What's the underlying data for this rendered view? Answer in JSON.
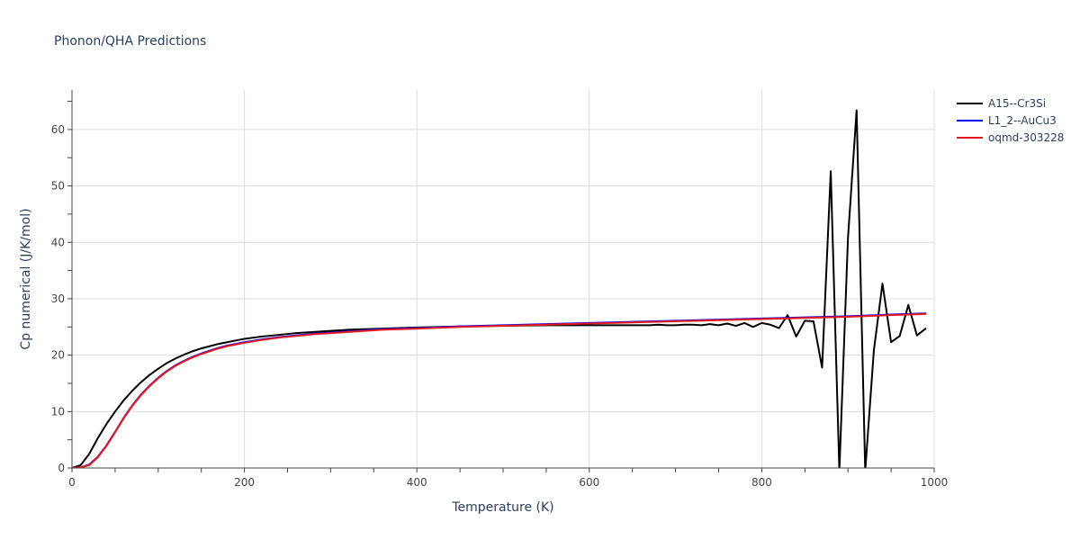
{
  "chart_data": {
    "type": "line",
    "title": "Phonon/QHA Predictions",
    "xlabel": "Temperature (K)",
    "ylabel": "Cp numerical (J/K/mol)",
    "xlim": [
      0,
      1000
    ],
    "ylim": [
      0,
      67
    ],
    "x_ticks": [
      0,
      200,
      400,
      600,
      800,
      1000
    ],
    "y_ticks": [
      0,
      10,
      20,
      30,
      40,
      50,
      60
    ],
    "grid": true,
    "legend_position": "top-right",
    "series": [
      {
        "name": "A15--Cr3Si",
        "color": "#000000",
        "x": [
          0,
          10,
          20,
          30,
          40,
          50,
          60,
          70,
          80,
          90,
          100,
          110,
          120,
          130,
          140,
          150,
          160,
          170,
          180,
          190,
          200,
          220,
          240,
          260,
          280,
          300,
          320,
          340,
          360,
          380,
          400,
          450,
          500,
          550,
          600,
          650,
          670,
          680,
          690,
          700,
          710,
          720,
          730,
          740,
          750,
          760,
          770,
          780,
          790,
          800,
          810,
          820,
          830,
          840,
          850,
          860,
          870,
          880,
          890,
          900,
          910,
          920,
          930,
          940,
          950,
          960,
          970,
          980,
          990
        ],
        "values": [
          0,
          0.5,
          2.5,
          5.3,
          7.8,
          10.0,
          12.0,
          13.7,
          15.2,
          16.5,
          17.6,
          18.6,
          19.4,
          20.1,
          20.7,
          21.2,
          21.6,
          22.0,
          22.3,
          22.6,
          22.9,
          23.3,
          23.6,
          23.9,
          24.1,
          24.3,
          24.5,
          24.6,
          24.7,
          24.8,
          24.9,
          25.1,
          25.2,
          25.3,
          25.3,
          25.3,
          25.3,
          25.4,
          25.3,
          25.3,
          25.4,
          25.4,
          25.3,
          25.5,
          25.3,
          25.6,
          25.2,
          25.7,
          25.0,
          25.7,
          25.4,
          24.8,
          27.1,
          23.3,
          26.1,
          26.0,
          17.8,
          52.6,
          -0.5,
          40.8,
          63.4,
          -0.5,
          20.8,
          32.7,
          22.3,
          23.4,
          28.9,
          23.5,
          24.7
        ]
      },
      {
        "name": "L1_2--AuCu3",
        "color": "#0000ff",
        "x": [
          0,
          10,
          20,
          30,
          40,
          50,
          60,
          70,
          80,
          90,
          100,
          110,
          120,
          130,
          140,
          150,
          160,
          170,
          180,
          190,
          200,
          220,
          240,
          260,
          280,
          300,
          320,
          340,
          360,
          380,
          400,
          450,
          500,
          550,
          600,
          650,
          700,
          750,
          800,
          850,
          900,
          950,
          990
        ],
        "values": [
          0,
          0.1,
          0.6,
          2.0,
          4.0,
          6.4,
          8.9,
          11.1,
          13.0,
          14.6,
          16.0,
          17.2,
          18.2,
          19.0,
          19.7,
          20.3,
          20.8,
          21.3,
          21.7,
          22.0,
          22.3,
          22.8,
          23.2,
          23.5,
          23.8,
          24.0,
          24.2,
          24.4,
          24.6,
          24.7,
          24.8,
          25.1,
          25.3,
          25.5,
          25.7,
          25.9,
          26.1,
          26.3,
          26.5,
          26.7,
          26.9,
          27.2,
          27.4
        ]
      },
      {
        "name": "oqmd-303228",
        "color": "#e41a1c",
        "x": [
          0,
          10,
          20,
          30,
          40,
          50,
          60,
          70,
          80,
          90,
          100,
          110,
          120,
          130,
          140,
          150,
          160,
          170,
          180,
          190,
          200,
          220,
          240,
          260,
          280,
          300,
          320,
          340,
          360,
          380,
          400,
          450,
          500,
          550,
          600,
          650,
          700,
          750,
          800,
          850,
          900,
          950,
          990
        ],
        "values": [
          0,
          0.1,
          0.5,
          1.9,
          3.9,
          6.3,
          8.8,
          11.0,
          12.9,
          14.5,
          15.9,
          17.1,
          18.1,
          18.9,
          19.6,
          20.2,
          20.7,
          21.2,
          21.6,
          21.9,
          22.2,
          22.7,
          23.1,
          23.4,
          23.7,
          23.9,
          24.1,
          24.3,
          24.5,
          24.6,
          24.7,
          25.0,
          25.2,
          25.4,
          25.6,
          25.8,
          26.0,
          26.2,
          26.4,
          26.6,
          26.8,
          27.1,
          27.3
        ]
      }
    ]
  }
}
